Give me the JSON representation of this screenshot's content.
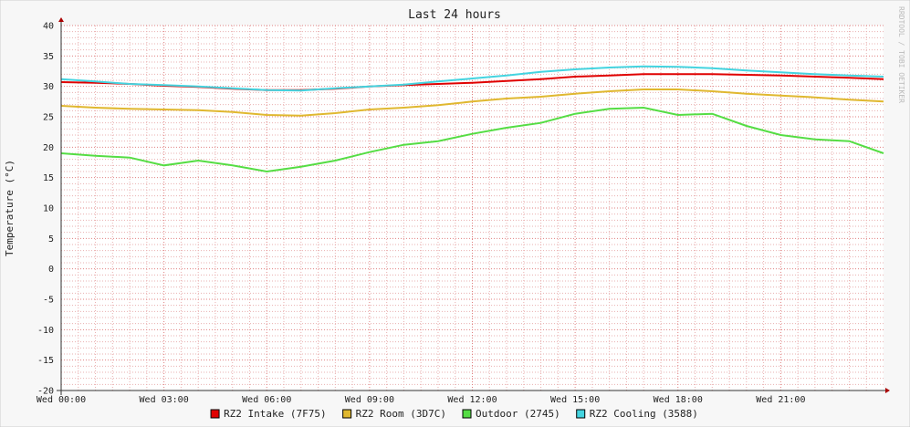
{
  "chart_data": {
    "type": "line",
    "title": "Last 24 hours",
    "y_label": "Temperature (°C)",
    "watermark": "RRDTOOL / TOBI OETIKER",
    "x": [
      0,
      1,
      2,
      3,
      4,
      5,
      6,
      7,
      8,
      9,
      10,
      11,
      12,
      13,
      14,
      15,
      16,
      17,
      18,
      19,
      20,
      21,
      22,
      23,
      24
    ],
    "xlim": [
      0,
      24
    ],
    "xticks": [
      {
        "value": 0,
        "label": "Wed 00:00"
      },
      {
        "value": 3,
        "label": "Wed 03:00"
      },
      {
        "value": 6,
        "label": "Wed 06:00"
      },
      {
        "value": 9,
        "label": "Wed 09:00"
      },
      {
        "value": 12,
        "label": "Wed 12:00"
      },
      {
        "value": 15,
        "label": "Wed 15:00"
      },
      {
        "value": 18,
        "label": "Wed 18:00"
      },
      {
        "value": 21,
        "label": "Wed 21:00"
      }
    ],
    "ylim": [
      -20,
      40
    ],
    "yticks": [
      -20,
      -15,
      -10,
      -5,
      0,
      5,
      10,
      15,
      20,
      25,
      30,
      35,
      40
    ],
    "grid": true,
    "series": [
      {
        "name": "RZ2 Intake (7F75)",
        "color": "#e00000",
        "values": [
          30.7,
          30.6,
          30.4,
          30.1,
          29.9,
          29.6,
          29.4,
          29.4,
          29.6,
          30.0,
          30.2,
          30.4,
          30.6,
          30.9,
          31.2,
          31.6,
          31.8,
          32.0,
          32.0,
          32.0,
          31.9,
          31.8,
          31.6,
          31.4,
          31.2
        ]
      },
      {
        "name": "RZ2 Room (3D7C)",
        "color": "#e0b830",
        "values": [
          26.8,
          26.5,
          26.3,
          26.2,
          26.1,
          25.8,
          25.3,
          25.2,
          25.6,
          26.2,
          26.5,
          26.9,
          27.5,
          28.0,
          28.3,
          28.8,
          29.2,
          29.5,
          29.5,
          29.2,
          28.8,
          28.5,
          28.2,
          27.8,
          27.5
        ]
      },
      {
        "name": "Outdoor (2745)",
        "color": "#55dd44",
        "values": [
          19.0,
          18.6,
          18.3,
          17.0,
          17.8,
          17.0,
          16.0,
          16.8,
          17.8,
          19.2,
          20.4,
          21.0,
          22.2,
          23.2,
          24.0,
          25.5,
          26.3,
          26.5,
          25.3,
          25.5,
          23.5,
          22.0,
          21.3,
          21.0,
          19.0
        ]
      },
      {
        "name": "RZ2 Cooling (3588)",
        "color": "#44d4e0",
        "values": [
          31.2,
          30.8,
          30.4,
          30.2,
          30.0,
          29.7,
          29.4,
          29.3,
          29.7,
          30.0,
          30.3,
          30.8,
          31.3,
          31.8,
          32.4,
          32.8,
          33.1,
          33.3,
          33.2,
          33.0,
          32.6,
          32.3,
          32.0,
          31.8,
          31.6
        ]
      }
    ]
  }
}
